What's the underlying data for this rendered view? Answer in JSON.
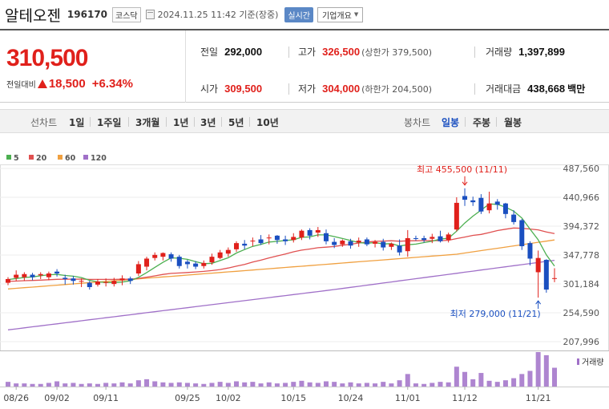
{
  "header": {
    "name": "알테오젠",
    "code": "196170",
    "market": "코스닥",
    "datetime": "2024.11.25 11:42",
    "basis": "기준(장중)",
    "realtime": "실시간",
    "company_menu": "기업개요"
  },
  "price": {
    "current": "310,500",
    "change_label": "전일대비",
    "change": "18,500",
    "change_pct": "+6.34%"
  },
  "stats": {
    "prev_close_label": "전일",
    "prev_close": "292,000",
    "high_label": "고가",
    "high": "326,500",
    "upper_limit": "(상한가 379,500)",
    "volume_label": "거래량",
    "volume": "1,397,899",
    "open_label": "시가",
    "open": "309,500",
    "low_label": "저가",
    "low": "304,000",
    "lower_limit": "(하한가 204,500)",
    "amount_label": "거래대금",
    "amount": "438,668",
    "amount_unit": "백만"
  },
  "period_bar": {
    "line_title": "선차트",
    "line_options": [
      "1일",
      "1주일",
      "3개월",
      "1년",
      "3년",
      "5년",
      "10년"
    ],
    "candle_title": "봉차트",
    "candle_options": [
      "일봉",
      "주봉",
      "월봉"
    ],
    "active": "일봉"
  },
  "colors": {
    "up": "#e0201b",
    "down": "#1a4fc0",
    "ma5": "#4caf50",
    "ma20": "#e05050",
    "ma60": "#f0a040",
    "ma120": "#a070c8",
    "volume": "#a070c8"
  },
  "chart_data": {
    "type": "candlestick",
    "legend": [
      "5",
      "20",
      "60",
      "120"
    ],
    "y_ticks": [
      "487,560",
      "440,966",
      "394,372",
      "347,778",
      "301,184",
      "254,590",
      "207,996"
    ],
    "ylim": [
      207996,
      487560
    ],
    "x_ticks": [
      "08/26",
      "09/02",
      "09/11",
      "09/25",
      "10/02",
      "10/15",
      "10/24",
      "11/01",
      "11/12",
      "11/21"
    ],
    "volume_label": "거래량",
    "high_annotation": "최고 455,500 (11/11)",
    "low_annotation": "최저 279,000 (11/21)",
    "candles": [
      [
        303000,
        309000,
        299000,
        312000
      ],
      [
        311000,
        316000,
        306000,
        323000
      ],
      [
        312000,
        317000,
        306000,
        320000
      ],
      [
        316000,
        312000,
        307000,
        319000
      ],
      [
        315000,
        317000,
        309000,
        320000
      ],
      [
        312000,
        318000,
        307000,
        321000
      ],
      [
        321000,
        318000,
        313000,
        325000
      ],
      [
        311000,
        309000,
        300000,
        316000
      ],
      [
        310000,
        306000,
        300000,
        314000
      ],
      [
        305000,
        306000,
        296000,
        310000
      ],
      [
        303000,
        296000,
        292000,
        306000
      ],
      [
        300000,
        305000,
        297000,
        309000
      ],
      [
        303000,
        304000,
        297000,
        310000
      ],
      [
        301000,
        306000,
        297000,
        311000
      ],
      [
        307000,
        310000,
        299000,
        315000
      ],
      [
        310000,
        306000,
        301000,
        313000
      ],
      [
        318000,
        333000,
        314000,
        338000
      ],
      [
        329000,
        342000,
        323000,
        345000
      ],
      [
        343000,
        348000,
        339000,
        352000
      ],
      [
        345000,
        351000,
        339000,
        352000
      ],
      [
        349000,
        342000,
        337000,
        352000
      ],
      [
        345000,
        330000,
        326000,
        348000
      ],
      [
        337000,
        333000,
        326000,
        340000
      ],
      [
        334000,
        329000,
        325000,
        338000
      ],
      [
        330000,
        335000,
        326000,
        339000
      ],
      [
        336000,
        345000,
        332000,
        350000
      ],
      [
        343000,
        352000,
        341000,
        356000
      ],
      [
        350000,
        356000,
        345000,
        360000
      ],
      [
        357000,
        367000,
        353000,
        370000
      ],
      [
        366000,
        363000,
        357000,
        372000
      ],
      [
        371000,
        371000,
        362000,
        376000
      ],
      [
        373000,
        367000,
        364000,
        380000
      ],
      [
        375000,
        376000,
        365000,
        381000
      ],
      [
        379000,
        372000,
        366000,
        380000
      ],
      [
        373000,
        370000,
        364000,
        379000
      ],
      [
        372000,
        377000,
        368000,
        383000
      ],
      [
        376000,
        387000,
        372000,
        389000
      ],
      [
        388000,
        379000,
        373000,
        391000
      ],
      [
        384000,
        388000,
        377000,
        393000
      ],
      [
        383000,
        370000,
        365000,
        389000
      ],
      [
        369000,
        364000,
        359000,
        375000
      ],
      [
        365000,
        371000,
        361000,
        373000
      ],
      [
        370000,
        363000,
        358000,
        374000
      ],
      [
        368000,
        371000,
        361000,
        376000
      ],
      [
        373000,
        365000,
        362000,
        376000
      ],
      [
        366000,
        369000,
        360000,
        372000
      ],
      [
        369000,
        360000,
        355000,
        374000
      ],
      [
        361000,
        366000,
        356000,
        368000
      ],
      [
        363000,
        352000,
        347000,
        373000
      ],
      [
        354000,
        375000,
        345000,
        388000
      ],
      [
        375000,
        374000,
        371000,
        379000
      ],
      [
        375000,
        372000,
        368000,
        379000
      ],
      [
        374000,
        377000,
        367000,
        382000
      ],
      [
        378000,
        370000,
        368000,
        387000
      ],
      [
        372000,
        381000,
        368000,
        384000
      ],
      [
        389000,
        432000,
        386000,
        441000
      ],
      [
        443000,
        437000,
        427000,
        455500
      ],
      [
        436000,
        433000,
        427000,
        442000
      ],
      [
        440000,
        418000,
        414000,
        446000
      ],
      [
        420000,
        431000,
        415000,
        450000
      ],
      [
        434000,
        429000,
        421000,
        438000
      ],
      [
        431000,
        414000,
        407000,
        432000
      ],
      [
        413000,
        401000,
        397000,
        420000
      ],
      [
        404000,
        362000,
        356000,
        406000
      ],
      [
        367000,
        342000,
        331000,
        370000
      ],
      [
        320000,
        343000,
        279000,
        355000
      ],
      [
        340000,
        292000,
        287000,
        341000
      ],
      [
        309500,
        310500,
        304000,
        326500
      ]
    ],
    "volumes": [
      9,
      6,
      6,
      5,
      5,
      7,
      10,
      6,
      7,
      5,
      6,
      5,
      7,
      6,
      8,
      6,
      12,
      14,
      10,
      8,
      7,
      8,
      7,
      6,
      5,
      7,
      9,
      7,
      10,
      8,
      9,
      6,
      8,
      6,
      7,
      9,
      11,
      8,
      7,
      10,
      9,
      6,
      8,
      6,
      7,
      6,
      9,
      6,
      12,
      24,
      6,
      5,
      7,
      9,
      8,
      38,
      28,
      14,
      26,
      11,
      9,
      12,
      16,
      24,
      30,
      66,
      60,
      36
    ]
  }
}
